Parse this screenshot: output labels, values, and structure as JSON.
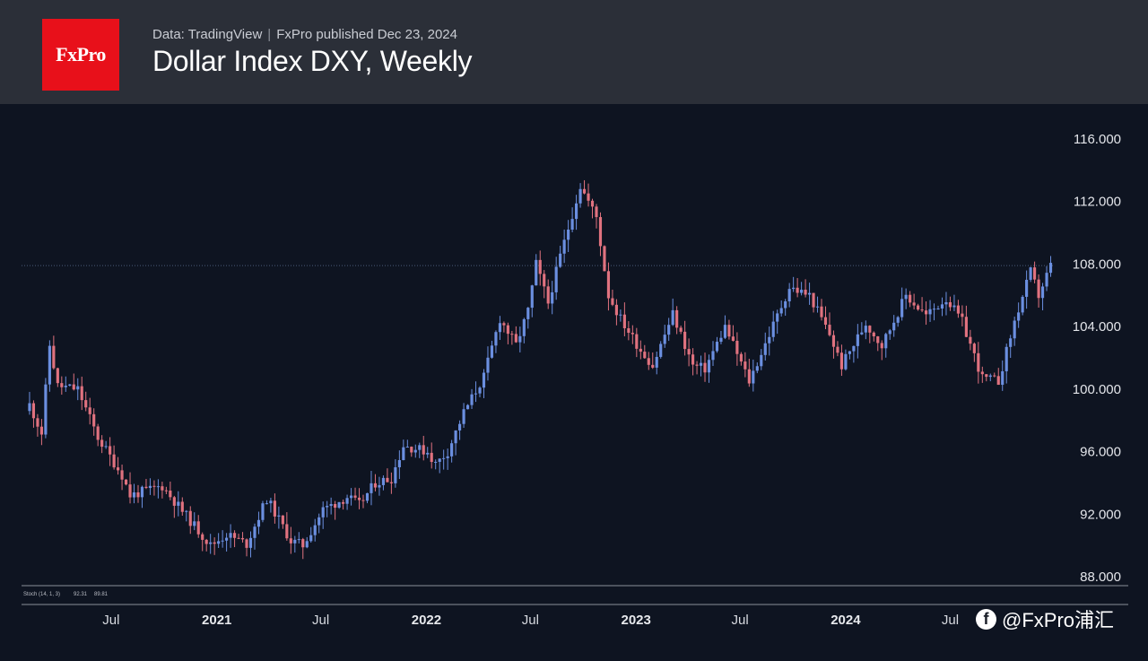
{
  "header": {
    "logo_text": "FxPro",
    "source": "Data: TradingView",
    "published": "FxPro published Dec 23, 2024",
    "title": "Dollar Index DXY, Weekly"
  },
  "colors": {
    "up": "#6b8fe0",
    "down": "#e0727f",
    "header_bg": "#2b2f38",
    "chart_bg": "#0e1421",
    "logo_bg": "#e8101a"
  },
  "stoch": {
    "label": "Stoch (14, 1, 3)",
    "k": "92.31",
    "d": "89.81",
    "k_color": "#6b8fe0",
    "d_color": "#f0883e"
  },
  "watermark": {
    "icon": "facebook-icon",
    "text": "@FxPro浦汇"
  },
  "chart_data": {
    "type": "candlestick",
    "title": "Dollar Index DXY, Weekly",
    "ylim": [
      88,
      116
    ],
    "y_ticks": [
      "116.000",
      "112.000",
      "108.000",
      "104.000",
      "100.000",
      "96.000",
      "92.000",
      "88.000"
    ],
    "x_ticks": [
      {
        "label": "Jul",
        "date": "2020-07-01",
        "year": false
      },
      {
        "label": "2021",
        "date": "2021-01-01",
        "year": true
      },
      {
        "label": "Jul",
        "date": "2021-07-01",
        "year": false
      },
      {
        "label": "2022",
        "date": "2022-01-01",
        "year": true
      },
      {
        "label": "Jul",
        "date": "2022-07-01",
        "year": false
      },
      {
        "label": "2023",
        "date": "2023-01-01",
        "year": true
      },
      {
        "label": "Jul",
        "date": "2023-07-01",
        "year": false
      },
      {
        "label": "2024",
        "date": "2024-01-01",
        "year": true
      },
      {
        "label": "Jul",
        "date": "2024-07-01",
        "year": false
      }
    ],
    "current_price": 107.9,
    "grid": false,
    "close_anchors": [
      [
        "2020-02-10",
        99.0
      ],
      [
        "2020-03-02",
        97.2
      ],
      [
        "2020-03-16",
        102.8
      ],
      [
        "2020-03-30",
        100.2
      ],
      [
        "2020-05-04",
        100.0
      ],
      [
        "2020-06-08",
        96.9
      ],
      [
        "2020-07-20",
        94.5
      ],
      [
        "2020-08-03",
        93.2
      ],
      [
        "2020-09-28",
        93.8
      ],
      [
        "2020-11-02",
        92.2
      ],
      [
        "2020-12-21",
        90.0
      ],
      [
        "2021-01-18",
        90.7
      ],
      [
        "2021-02-22",
        90.1
      ],
      [
        "2021-03-29",
        93.0
      ],
      [
        "2021-05-10",
        90.3
      ],
      [
        "2021-05-31",
        90.0
      ],
      [
        "2021-07-05",
        92.3
      ],
      [
        "2021-08-16",
        93.1
      ],
      [
        "2021-09-06",
        92.6
      ],
      [
        "2021-10-04",
        94.0
      ],
      [
        "2021-11-01",
        94.3
      ],
      [
        "2021-11-22",
        96.4
      ],
      [
        "2022-01-03",
        96.0
      ],
      [
        "2022-01-17",
        95.2
      ],
      [
        "2022-02-07",
        96.0
      ],
      [
        "2022-03-07",
        98.5
      ],
      [
        "2022-04-11",
        100.8
      ],
      [
        "2022-05-09",
        104.5
      ],
      [
        "2022-06-06",
        102.8
      ],
      [
        "2022-06-27",
        105.0
      ],
      [
        "2022-07-11",
        108.0
      ],
      [
        "2022-08-01",
        105.5
      ],
      [
        "2022-08-22",
        108.5
      ],
      [
        "2022-09-26",
        113.0
      ],
      [
        "2022-10-24",
        111.0
      ],
      [
        "2022-11-14",
        106.0
      ],
      [
        "2022-12-05",
        104.5
      ],
      [
        "2023-01-09",
        102.5
      ],
      [
        "2023-01-30",
        101.5
      ],
      [
        "2023-03-06",
        104.8
      ],
      [
        "2023-04-10",
        101.5
      ],
      [
        "2023-05-01",
        101.3
      ],
      [
        "2023-06-05",
        104.0
      ],
      [
        "2023-07-17",
        100.5
      ],
      [
        "2023-08-21",
        103.5
      ],
      [
        "2023-09-25",
        106.5
      ],
      [
        "2023-10-30",
        106.0
      ],
      [
        "2023-12-04",
        103.5
      ],
      [
        "2023-12-25",
        101.5
      ],
      [
        "2024-02-05",
        104.2
      ],
      [
        "2024-03-04",
        102.8
      ],
      [
        "2024-04-15",
        106.0
      ],
      [
        "2024-05-20",
        104.7
      ],
      [
        "2024-06-24",
        105.8
      ],
      [
        "2024-07-22",
        104.3
      ],
      [
        "2024-08-26",
        100.7
      ],
      [
        "2024-09-23",
        100.5
      ],
      [
        "2024-10-21",
        104.3
      ],
      [
        "2024-11-18",
        107.5
      ],
      [
        "2024-12-02",
        106.0
      ],
      [
        "2024-12-23",
        107.9
      ]
    ]
  }
}
